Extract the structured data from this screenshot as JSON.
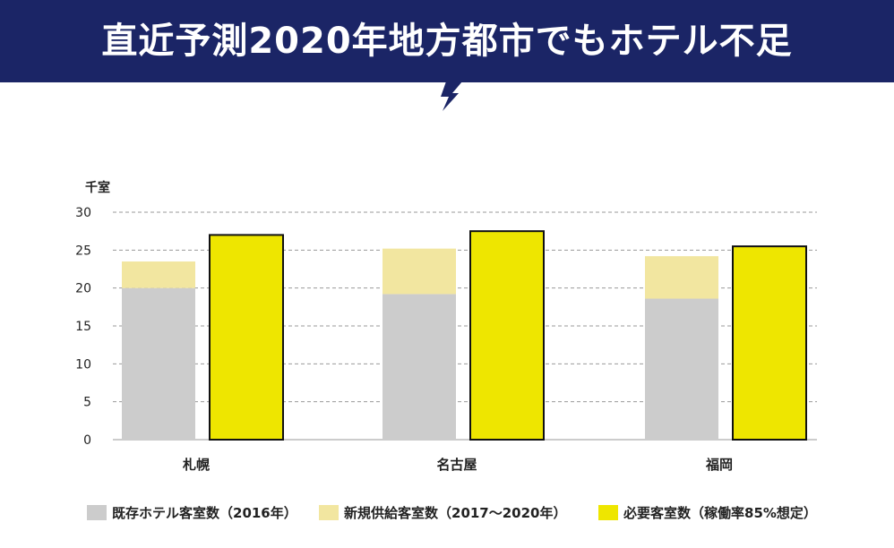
{
  "header": {
    "title": "直近予測2020年地方都市でもホテル不足"
  },
  "chart_data": {
    "type": "bar",
    "ylabel": "千室",
    "ylim": [
      0,
      30
    ],
    "yticks": [
      0,
      5,
      10,
      15,
      20,
      25,
      30
    ],
    "grid": true,
    "categories": [
      "札幌",
      "名古屋",
      "福岡"
    ],
    "series": [
      {
        "name": "既存ホテル客室数（2016年）",
        "values": [
          20.0,
          19.2,
          18.6
        ],
        "color": "#cccccc",
        "stack": "supply"
      },
      {
        "name": "新規供給客室数（2017～2020年）",
        "values": [
          3.5,
          6.0,
          5.6
        ],
        "color": "#f2e6a0",
        "stack": "supply"
      },
      {
        "name": "必要客室数（稼働率85%想定）",
        "values": [
          27.0,
          27.5,
          25.5
        ],
        "color": "#eee600",
        "stack": "demand"
      }
    ],
    "legend_position": "bottom"
  },
  "colors": {
    "banner": "#1b2566",
    "gridline": "#999999",
    "bar_outline": "#111111"
  }
}
